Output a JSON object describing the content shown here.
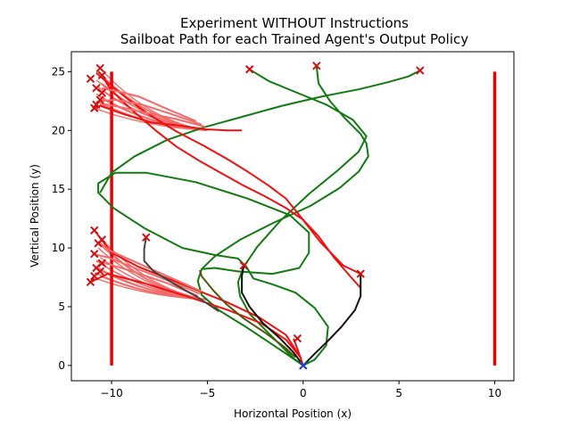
{
  "chart_data": {
    "type": "line",
    "title_line1": "Experiment WITHOUT Instructions",
    "title_line2": "Sailboat Path for each Trained Agent's Output Policy",
    "xlabel": "Horizontal Position (x)",
    "ylabel": "Vertical Position (y)",
    "xlim": [
      -12.1,
      11.0
    ],
    "ylim": [
      -1.3,
      26.7
    ],
    "xticks": [
      -10,
      -5,
      0,
      5,
      10
    ],
    "yticks": [
      0,
      5,
      10,
      15,
      20,
      25
    ],
    "grid": false,
    "legend": "none",
    "start_point": {
      "x": 0,
      "y": 0,
      "color": "#1f3fbf"
    },
    "boundaries": [
      {
        "x": -10,
        "y": [
          0,
          25
        ],
        "color": "#ee0000"
      },
      {
        "x": 10,
        "y": [
          0,
          25
        ],
        "color": "#ee0000"
      }
    ],
    "colors": {
      "red": "#ee1111",
      "light_red": "#f26a6a",
      "green": "#117a11",
      "black": "#111111",
      "dark_gray": "#444444",
      "olive": "#555511",
      "marker": "#d01010"
    },
    "series": [
      {
        "color": "green",
        "points": [
          [
            0,
            0
          ],
          [
            -0.5,
            0.6
          ],
          [
            -1.1,
            1.6
          ],
          [
            -1.9,
            2.9
          ],
          [
            -2.8,
            4.4
          ],
          [
            -3.3,
            5.9
          ],
          [
            -3.4,
            7.1
          ],
          [
            -3.1,
            8.4
          ],
          [
            -2.4,
            10.1
          ],
          [
            -1.2,
            12.3
          ],
          [
            0.3,
            14.6
          ],
          [
            1.8,
            16.6
          ],
          [
            2.9,
            18.2
          ],
          [
            3.3,
            19.5
          ],
          [
            2.6,
            20.9
          ],
          [
            1.2,
            22.2
          ],
          [
            -0.6,
            23.4
          ],
          [
            -1.8,
            24.2
          ],
          [
            -2.8,
            25.2
          ]
        ]
      },
      {
        "color": "green",
        "points": [
          [
            0,
            0
          ],
          [
            0.6,
            0.5
          ],
          [
            1.2,
            1.7
          ],
          [
            1.3,
            3.3
          ],
          [
            0.6,
            4.9
          ],
          [
            -0.4,
            6.2
          ],
          [
            -1.6,
            6.9
          ],
          [
            -2.6,
            7.4
          ],
          [
            -3.0,
            8.5
          ]
        ]
      },
      {
        "color": "green",
        "points": [
          [
            0,
            0
          ],
          [
            -0.8,
            0.9
          ],
          [
            -1.9,
            2.1
          ],
          [
            -3.1,
            3.4
          ],
          [
            -4.4,
            4.7
          ],
          [
            -5.3,
            6.0
          ],
          [
            -5.5,
            7.2
          ],
          [
            -5.3,
            8.2
          ],
          [
            -4.6,
            9.3
          ],
          [
            -3.3,
            10.7
          ],
          [
            -1.6,
            12.1
          ],
          [
            0.4,
            13.6
          ],
          [
            1.9,
            15.1
          ],
          [
            2.9,
            16.5
          ],
          [
            3.4,
            17.8
          ],
          [
            3.3,
            18.9
          ],
          [
            3.0,
            19.7
          ],
          [
            2.2,
            21.0
          ],
          [
            1.4,
            22.5
          ],
          [
            0.8,
            24.0
          ],
          [
            0.7,
            25.5
          ]
        ]
      },
      {
        "color": "green",
        "points": [
          [
            -5.3,
            8.2
          ],
          [
            -4.6,
            8.3
          ],
          [
            -3.4,
            8.0
          ],
          [
            -1.6,
            7.8
          ],
          [
            -0.2,
            8.3
          ],
          [
            0.3,
            9.6
          ],
          [
            0.3,
            11.3
          ],
          [
            -0.7,
            12.8
          ],
          [
            -2.9,
            14.2
          ],
          [
            -5.6,
            15.6
          ],
          [
            -8.2,
            16.4
          ],
          [
            -9.8,
            16.4
          ],
          [
            -10.7,
            15.5
          ],
          [
            -10.7,
            14.7
          ],
          [
            -9.9,
            13.4
          ],
          [
            -8.3,
            11.7
          ],
          [
            -6.3,
            10.0
          ],
          [
            -4.6,
            9.4
          ],
          [
            -3.4,
            9.1
          ],
          [
            -3.1,
            8.6
          ]
        ]
      },
      {
        "color": "green",
        "points": [
          [
            -10.6,
            14.7
          ],
          [
            -10.0,
            16.4
          ],
          [
            -8.8,
            17.8
          ],
          [
            -7.1,
            19.2
          ],
          [
            -5.1,
            20.3
          ],
          [
            -3.1,
            21.2
          ],
          [
            -1.1,
            22.1
          ],
          [
            1.0,
            22.9
          ],
          [
            2.9,
            23.5
          ],
          [
            4.4,
            24.1
          ],
          [
            5.5,
            24.6
          ],
          [
            6.1,
            25.1
          ]
        ]
      },
      {
        "color": "red",
        "points": [
          [
            3.0,
            7.8
          ],
          [
            2.1,
            8.5
          ],
          [
            0.9,
            10.5
          ],
          [
            -0.2,
            12.8
          ],
          [
            -0.9,
            14.2
          ],
          [
            -1.8,
            15.3
          ],
          [
            -2.9,
            16.5
          ],
          [
            -4.0,
            17.6
          ],
          [
            -5.2,
            18.7
          ],
          [
            -6.6,
            19.9
          ],
          [
            -7.9,
            21.2
          ],
          [
            -9.1,
            22.6
          ],
          [
            -10.1,
            23.9
          ],
          [
            -10.8,
            24.9
          ]
        ]
      },
      {
        "color": "red",
        "points": [
          [
            3.0,
            6.6
          ],
          [
            2.5,
            7.5
          ],
          [
            1.6,
            9.2
          ],
          [
            0.8,
            11.0
          ],
          [
            0.0,
            12.4
          ],
          [
            -0.9,
            13.4
          ],
          [
            -2.0,
            14.4
          ],
          [
            -3.1,
            15.3
          ],
          [
            -4.2,
            16.3
          ],
          [
            -5.4,
            17.4
          ],
          [
            -6.6,
            18.6
          ],
          [
            -7.7,
            20.0
          ],
          [
            -8.7,
            21.4
          ],
          [
            -9.5,
            22.6
          ],
          [
            -10.1,
            23.6
          ],
          [
            -10.4,
            24.4
          ]
        ]
      },
      {
        "color": "red",
        "points": [
          [
            -0.1,
            0.6
          ],
          [
            -0.9,
            2.2
          ],
          [
            -2.2,
            3.6
          ],
          [
            -3.9,
            4.7
          ],
          [
            -6.1,
            5.9
          ],
          [
            -8.3,
            7.0
          ],
          [
            -10.2,
            7.8
          ],
          [
            -11.1,
            7.1
          ]
        ]
      },
      {
        "color": "red",
        "points": [
          [
            -0.1,
            0.6
          ],
          [
            -0.9,
            2.6
          ],
          [
            -2.3,
            4.1
          ],
          [
            -4.0,
            5.4
          ],
          [
            -6.3,
            6.9
          ],
          [
            -8.6,
            8.4
          ],
          [
            -10.0,
            9.6
          ],
          [
            -10.9,
            11.5
          ]
        ]
      },
      {
        "color": "light_red",
        "points": [
          [
            -5.5,
            5.9
          ],
          [
            -7.1,
            7.0
          ],
          [
            -8.9,
            8.0
          ],
          [
            -10.1,
            8.6
          ],
          [
            -10.8,
            8.9
          ]
        ]
      },
      {
        "color": "light_red",
        "points": [
          [
            -5.3,
            6.3
          ],
          [
            -7.1,
            7.6
          ],
          [
            -8.9,
            8.9
          ],
          [
            -10.0,
            9.7
          ],
          [
            -10.7,
            10.5
          ]
        ]
      },
      {
        "color": "light_red",
        "points": [
          [
            -5.4,
            6.1
          ],
          [
            -7.0,
            7.2
          ],
          [
            -8.8,
            8.3
          ],
          [
            -10.2,
            9.2
          ],
          [
            -11.0,
            9.5
          ]
        ]
      },
      {
        "color": "dark_gray",
        "points": [
          [
            -4.4,
            4.6
          ],
          [
            -5.6,
            5.9
          ],
          [
            -6.8,
            7.0
          ],
          [
            -7.8,
            8.0
          ],
          [
            -8.3,
            8.9
          ],
          [
            -8.3,
            9.9
          ],
          [
            -8.2,
            10.9
          ]
        ]
      },
      {
        "color": "olive",
        "points": [
          [
            -0.4,
            0.7
          ],
          [
            -1.0,
            1.6
          ],
          [
            -2.0,
            2.8
          ],
          [
            -3.1,
            4.0
          ],
          [
            -4.0,
            5.2
          ],
          [
            -4.7,
            6.4
          ],
          [
            -5.3,
            7.6
          ],
          [
            -5.4,
            8.1
          ]
        ]
      },
      {
        "color": "black",
        "points": [
          [
            0,
            0
          ],
          [
            -0.5,
            1.1
          ],
          [
            -1.2,
            2.3
          ],
          [
            -2.1,
            3.6
          ],
          [
            -2.8,
            5.0
          ],
          [
            -3.2,
            6.2
          ],
          [
            -3.2,
            7.6
          ],
          [
            -3.1,
            8.5
          ]
        ]
      },
      {
        "color": "black",
        "points": [
          [
            0,
            0
          ],
          [
            0.6,
            1.0
          ],
          [
            1.3,
            2.1
          ],
          [
            2.0,
            3.3
          ],
          [
            2.7,
            4.7
          ],
          [
            3.0,
            5.9
          ],
          [
            3.0,
            6.8
          ],
          [
            3.0,
            7.8
          ]
        ]
      },
      {
        "color": "red",
        "points": [
          [
            -0.5,
            2.3
          ],
          [
            -0.3,
            1.4
          ],
          [
            0,
            0
          ]
        ]
      },
      {
        "color": "red",
        "points": [
          [
            -3.2,
            20.0
          ],
          [
            -3.9,
            20.0
          ],
          [
            -5.1,
            20.1
          ],
          [
            -6.4,
            20.4
          ],
          [
            -8.0,
            20.7
          ],
          [
            -9.4,
            21.4
          ],
          [
            -10.6,
            22.1
          ],
          [
            -10.8,
            21.9
          ]
        ]
      },
      {
        "color": "light_red",
        "points": [
          [
            -5.1,
            20.3
          ],
          [
            -6.7,
            21.0
          ],
          [
            -8.2,
            21.5
          ],
          [
            -9.6,
            22.0
          ],
          [
            -10.6,
            22.3
          ]
        ]
      },
      {
        "color": "light_red",
        "points": [
          [
            -5.3,
            20.5
          ],
          [
            -6.9,
            21.4
          ],
          [
            -8.4,
            22.2
          ],
          [
            -9.8,
            22.6
          ],
          [
            -10.7,
            22.5
          ]
        ]
      },
      {
        "color": "light_red",
        "points": [
          [
            -5.6,
            20.8
          ],
          [
            -7.2,
            21.9
          ],
          [
            -8.6,
            22.9
          ],
          [
            -9.9,
            23.4
          ],
          [
            -10.5,
            23.6
          ]
        ]
      }
    ],
    "fan_groups": [
      {
        "origin": [
          -5.0,
          20.0
        ],
        "color": "light_red",
        "endpoints": [
          [
            -10.6,
            25.3
          ],
          [
            -10.7,
            25.0
          ],
          [
            -10.5,
            24.6
          ],
          [
            -10.8,
            24.3
          ],
          [
            -10.5,
            24.0
          ],
          [
            -10.7,
            23.7
          ],
          [
            -10.5,
            23.4
          ],
          [
            -10.8,
            23.1
          ],
          [
            -10.6,
            22.8
          ],
          [
            -10.8,
            22.5
          ],
          [
            -10.6,
            22.2
          ],
          [
            -10.9,
            21.9
          ]
        ]
      },
      {
        "origin": [
          -5.0,
          5.6
        ],
        "color": "light_red",
        "endpoints": [
          [
            -10.6,
            10.9
          ],
          [
            -10.8,
            10.6
          ],
          [
            -10.5,
            10.3
          ],
          [
            -10.7,
            10.0
          ],
          [
            -10.6,
            9.2
          ],
          [
            -10.8,
            8.9
          ],
          [
            -10.5,
            8.6
          ],
          [
            -10.7,
            8.3
          ],
          [
            -10.6,
            8.1
          ],
          [
            -10.9,
            7.9
          ],
          [
            -10.6,
            7.6
          ],
          [
            -10.8,
            7.4
          ]
        ]
      }
    ],
    "end_markers": [
      [
        -2.8,
        25.2
      ],
      [
        0.7,
        25.5
      ],
      [
        6.1,
        25.1
      ],
      [
        -10.6,
        25.3
      ],
      [
        -11.1,
        24.4
      ],
      [
        -10.5,
        24.7
      ],
      [
        -10.8,
        23.6
      ],
      [
        -10.5,
        23.2
      ],
      [
        -10.8,
        22.2
      ],
      [
        -10.6,
        22.6
      ],
      [
        -10.9,
        21.9
      ],
      [
        -10.9,
        11.5
      ],
      [
        -8.2,
        10.9
      ],
      [
        -10.5,
        10.7
      ],
      [
        -10.7,
        10.4
      ],
      [
        -10.9,
        9.5
      ],
      [
        -10.5,
        8.7
      ],
      [
        -10.8,
        8.3
      ],
      [
        -10.6,
        8.0
      ],
      [
        -10.9,
        7.6
      ],
      [
        -11.1,
        7.1
      ],
      [
        -3.1,
        8.5
      ],
      [
        3.0,
        7.8
      ],
      [
        -0.3,
        2.3
      ]
    ]
  }
}
